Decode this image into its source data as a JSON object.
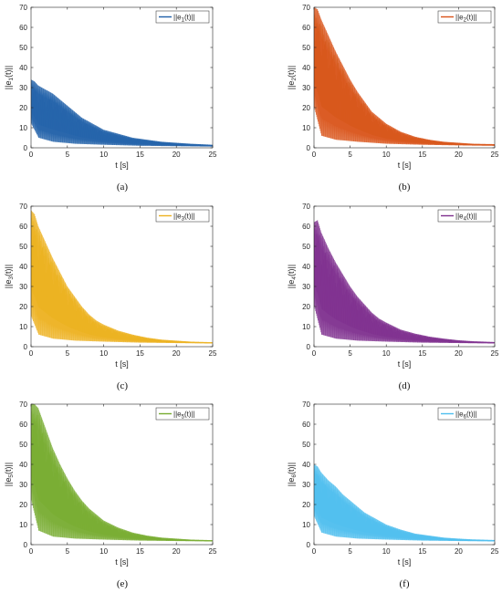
{
  "chart_data": [
    {
      "type": "line",
      "subcaption": "(a)",
      "xlabel": "t [s]",
      "ylabel_main": "||e",
      "ylabel_sub": "1",
      "ylabel_end": "(t)||",
      "legend_main": "||e",
      "legend_sub": "1",
      "legend_end": "(t)||",
      "legend_position": "top-right",
      "xlim": [
        0,
        25
      ],
      "ylim": [
        0,
        70
      ],
      "xticks": [
        0,
        5,
        10,
        15,
        20,
        25
      ],
      "yticks": [
        0,
        10,
        20,
        30,
        40,
        50,
        60,
        70
      ],
      "grid": false,
      "series": [
        {
          "color": "#1f5fa8",
          "light_color": "#8ec3e8",
          "upper_envelope": [
            [
              0,
              34
            ],
            [
              0.5,
              33
            ],
            [
              1,
              31
            ],
            [
              2,
              29
            ],
            [
              3,
              27
            ],
            [
              4,
              24
            ],
            [
              5,
              21
            ],
            [
              6,
              18
            ],
            [
              7,
              15
            ],
            [
              8,
              13
            ],
            [
              9,
              11
            ],
            [
              10,
              9
            ],
            [
              12,
              7
            ],
            [
              14,
              5
            ],
            [
              16,
              4
            ],
            [
              18,
              3
            ],
            [
              20,
              2.5
            ],
            [
              22,
              2
            ],
            [
              25,
              1.5
            ]
          ],
          "lower_envelope": [
            [
              0,
              12
            ],
            [
              1,
              5
            ],
            [
              3,
              3
            ],
            [
              6,
              2
            ],
            [
              10,
              1.5
            ],
            [
              15,
              1
            ],
            [
              20,
              0.8
            ],
            [
              25,
              0.6
            ]
          ]
        }
      ]
    },
    {
      "type": "line",
      "subcaption": "(b)",
      "xlabel": "t [s]",
      "ylabel_main": "||e",
      "ylabel_sub": "2",
      "ylabel_end": "(t)||",
      "legend_main": "||e",
      "legend_sub": "2",
      "legend_end": "(t)||",
      "legend_position": "top-right",
      "xlim": [
        0,
        25
      ],
      "ylim": [
        0,
        70
      ],
      "xticks": [
        0,
        5,
        10,
        15,
        20,
        25
      ],
      "yticks": [
        0,
        10,
        20,
        30,
        40,
        50,
        60,
        70
      ],
      "grid": false,
      "series": [
        {
          "color": "#d95319",
          "light_color": "#b5a13a",
          "upper_envelope": [
            [
              0,
              70
            ],
            [
              0.5,
              69
            ],
            [
              1,
              64
            ],
            [
              2,
              56
            ],
            [
              3,
              48
            ],
            [
              4,
              41
            ],
            [
              5,
              34
            ],
            [
              6,
              28
            ],
            [
              7,
              23
            ],
            [
              8,
              18
            ],
            [
              9,
              15
            ],
            [
              10,
              12
            ],
            [
              12,
              8
            ],
            [
              14,
              5.5
            ],
            [
              16,
              4
            ],
            [
              18,
              3
            ],
            [
              20,
              2.5
            ],
            [
              22,
              2
            ],
            [
              25,
              1.8
            ]
          ],
          "lower_envelope": [
            [
              0,
              20
            ],
            [
              1,
              6
            ],
            [
              3,
              4
            ],
            [
              6,
              3
            ],
            [
              10,
              2
            ],
            [
              15,
              1.5
            ],
            [
              20,
              1.2
            ],
            [
              25,
              1
            ]
          ]
        }
      ]
    },
    {
      "type": "line",
      "subcaption": "(c)",
      "xlabel": "t [s]",
      "ylabel_main": "||e",
      "ylabel_sub": "3",
      "ylabel_end": "(t)||",
      "legend_main": "||e",
      "legend_sub": "3",
      "legend_end": "(t)||",
      "legend_position": "top-right",
      "xlim": [
        0,
        25
      ],
      "ylim": [
        0,
        70
      ],
      "xticks": [
        0,
        5,
        10,
        15,
        20,
        25
      ],
      "yticks": [
        0,
        10,
        20,
        30,
        40,
        50,
        60,
        70
      ],
      "grid": false,
      "series": [
        {
          "color": "#edb120",
          "light_color": "#c8c832",
          "upper_envelope": [
            [
              0,
              68
            ],
            [
              0.5,
              66
            ],
            [
              1,
              60
            ],
            [
              2,
              52
            ],
            [
              3,
              44
            ],
            [
              4,
              37
            ],
            [
              5,
              30
            ],
            [
              6,
              25
            ],
            [
              7,
              20
            ],
            [
              8,
              16
            ],
            [
              9,
              13
            ],
            [
              10,
              11
            ],
            [
              12,
              8
            ],
            [
              14,
              6
            ],
            [
              16,
              4.5
            ],
            [
              18,
              3.5
            ],
            [
              20,
              3
            ],
            [
              22,
              2.5
            ],
            [
              25,
              2.2
            ]
          ],
          "lower_envelope": [
            [
              0,
              15
            ],
            [
              1,
              6
            ],
            [
              3,
              4
            ],
            [
              6,
              3
            ],
            [
              10,
              2.5
            ],
            [
              15,
              2
            ],
            [
              20,
              1.8
            ],
            [
              25,
              1.6
            ]
          ]
        }
      ]
    },
    {
      "type": "line",
      "subcaption": "(d)",
      "xlabel": "t [s]",
      "ylabel_main": "||e",
      "ylabel_sub": "4",
      "ylabel_end": "(t)||",
      "legend_main": "||e",
      "legend_sub": "4",
      "legend_end": "(t)||",
      "legend_position": "top-right",
      "xlim": [
        0,
        25
      ],
      "ylim": [
        0,
        70
      ],
      "xticks": [
        0,
        5,
        10,
        15,
        20,
        25
      ],
      "yticks": [
        0,
        10,
        20,
        30,
        40,
        50,
        60,
        70
      ],
      "grid": false,
      "series": [
        {
          "color": "#7e2f8e",
          "light_color": "#a05cb0",
          "upper_envelope": [
            [
              0,
              62
            ],
            [
              0.5,
              63
            ],
            [
              1,
              57
            ],
            [
              2,
              49
            ],
            [
              3,
              42
            ],
            [
              4,
              36
            ],
            [
              5,
              30
            ],
            [
              6,
              25
            ],
            [
              7,
              21
            ],
            [
              8,
              17
            ],
            [
              9,
              14
            ],
            [
              10,
              12
            ],
            [
              12,
              8.5
            ],
            [
              14,
              6.5
            ],
            [
              16,
              5
            ],
            [
              18,
              4
            ],
            [
              20,
              3.2
            ],
            [
              22,
              2.7
            ],
            [
              25,
              2.3
            ]
          ],
          "lower_envelope": [
            [
              0,
              20
            ],
            [
              1,
              6
            ],
            [
              3,
              4
            ],
            [
              6,
              3
            ],
            [
              10,
              2.5
            ],
            [
              15,
              2
            ],
            [
              20,
              1.8
            ],
            [
              25,
              1.6
            ]
          ]
        }
      ]
    },
    {
      "type": "line",
      "subcaption": "(e)",
      "xlabel": "t [s]",
      "ylabel_main": "||e",
      "ylabel_sub": "5",
      "ylabel_end": "(t)||",
      "legend_main": "||e",
      "legend_sub": "5",
      "legend_end": "(t)||",
      "legend_position": "top-right",
      "xlim": [
        0,
        25
      ],
      "ylim": [
        0,
        70
      ],
      "xticks": [
        0,
        5,
        10,
        15,
        20,
        25
      ],
      "yticks": [
        0,
        10,
        20,
        30,
        40,
        50,
        60,
        70
      ],
      "grid": false,
      "series": [
        {
          "color": "#77ac30",
          "light_color": "#a6cf5f",
          "upper_envelope": [
            [
              0,
              70
            ],
            [
              0.5,
              70
            ],
            [
              1,
              68
            ],
            [
              2,
              58
            ],
            [
              3,
              48
            ],
            [
              4,
              40
            ],
            [
              5,
              33
            ],
            [
              6,
              27
            ],
            [
              7,
              22
            ],
            [
              8,
              18
            ],
            [
              9,
              15
            ],
            [
              10,
              12
            ],
            [
              12,
              8.5
            ],
            [
              14,
              6
            ],
            [
              16,
              4.5
            ],
            [
              18,
              3.5
            ],
            [
              20,
              3
            ],
            [
              22,
              2.5
            ],
            [
              25,
              2.2
            ]
          ],
          "lower_envelope": [
            [
              0,
              22
            ],
            [
              1,
              7
            ],
            [
              3,
              4
            ],
            [
              6,
              3
            ],
            [
              10,
              2.5
            ],
            [
              15,
              2
            ],
            [
              20,
              1.8
            ],
            [
              25,
              1.6
            ]
          ]
        }
      ]
    },
    {
      "type": "line",
      "subcaption": "(f)",
      "xlabel": "t [s]",
      "ylabel_main": "||e",
      "ylabel_sub": "6",
      "ylabel_end": "(t)||",
      "legend_main": "||e",
      "legend_sub": "6",
      "legend_end": "(t)||",
      "legend_position": "top-right",
      "xlim": [
        0,
        25
      ],
      "ylim": [
        0,
        70
      ],
      "xticks": [
        0,
        5,
        10,
        15,
        20,
        25
      ],
      "yticks": [
        0,
        10,
        20,
        30,
        40,
        50,
        60,
        70
      ],
      "grid": false,
      "series": [
        {
          "color": "#4dbeee",
          "light_color": "#9fdcf5",
          "upper_envelope": [
            [
              0,
              40
            ],
            [
              0.5,
              39
            ],
            [
              1,
              36
            ],
            [
              2,
              32
            ],
            [
              3,
              29
            ],
            [
              4,
              25
            ],
            [
              5,
              22
            ],
            [
              6,
              19
            ],
            [
              7,
              16
            ],
            [
              8,
              14
            ],
            [
              9,
              12
            ],
            [
              10,
              10
            ],
            [
              12,
              7.5
            ],
            [
              14,
              5.5
            ],
            [
              16,
              4.5
            ],
            [
              18,
              3.5
            ],
            [
              20,
              3
            ],
            [
              22,
              2.6
            ],
            [
              25,
              2.3
            ]
          ],
          "lower_envelope": [
            [
              0,
              14
            ],
            [
              1,
              6
            ],
            [
              3,
              4
            ],
            [
              6,
              3
            ],
            [
              10,
              2.5
            ],
            [
              15,
              2
            ],
            [
              20,
              1.8
            ],
            [
              25,
              1.6
            ]
          ]
        }
      ]
    }
  ]
}
